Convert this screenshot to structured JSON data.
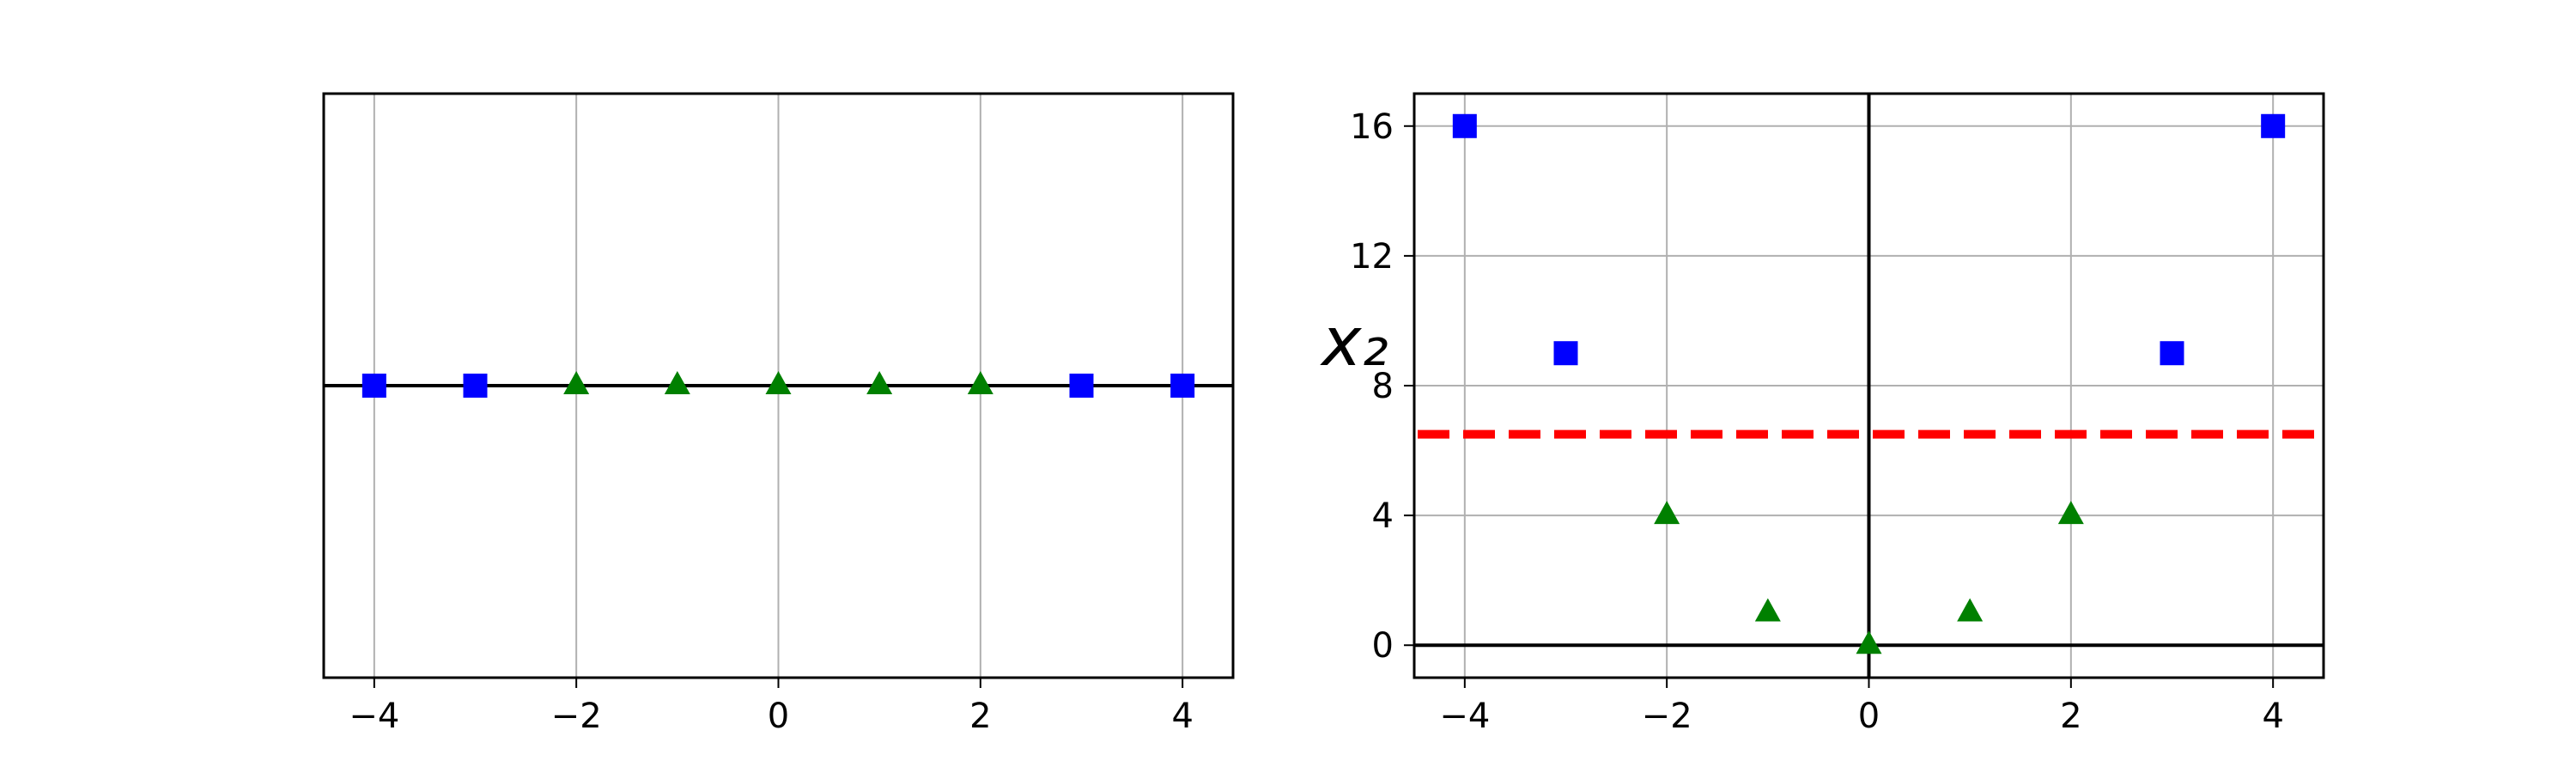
{
  "chart_data": [
    {
      "type": "scatter",
      "title": "",
      "xlabel": "",
      "ylabel": "",
      "xlim": [
        -4.5,
        4.5
      ],
      "ylim": [
        -1,
        1
      ],
      "xticks": [
        "−4",
        "−2",
        "0",
        "2",
        "4"
      ],
      "yticks": [],
      "grid": true,
      "zero_lines": [
        "y=0"
      ],
      "series": [
        {
          "marker": "square",
          "color": "#0000ff",
          "x": [
            -4,
            -3,
            3,
            4
          ],
          "y": [
            0,
            0,
            0,
            0
          ]
        },
        {
          "marker": "triangle",
          "color": "#008000",
          "x": [
            -2,
            -1,
            0,
            1,
            2
          ],
          "y": [
            0,
            0,
            0,
            0,
            0
          ]
        }
      ]
    },
    {
      "type": "scatter",
      "title": "",
      "xlabel": "",
      "ylabel": "x₂",
      "xlim": [
        -4.5,
        4.5
      ],
      "ylim": [
        -1,
        17
      ],
      "xticks": [
        "−4",
        "−2",
        "0",
        "2",
        "4"
      ],
      "yticks": [
        "0",
        "4",
        "8",
        "12",
        "16"
      ],
      "grid": true,
      "zero_lines": [
        "x=0",
        "y=0"
      ],
      "series": [
        {
          "marker": "square",
          "color": "#0000ff",
          "x": [
            -4,
            -3,
            3,
            4
          ],
          "y": [
            16,
            9,
            9,
            16
          ]
        },
        {
          "marker": "triangle",
          "color": "#008000",
          "x": [
            -2,
            -1,
            0,
            1,
            2
          ],
          "y": [
            4,
            1,
            0,
            1,
            4
          ]
        }
      ],
      "reference_lines": [
        {
          "orientation": "horizontal",
          "y": 6.5,
          "color": "#ff0000",
          "style": "dashed"
        }
      ]
    }
  ]
}
